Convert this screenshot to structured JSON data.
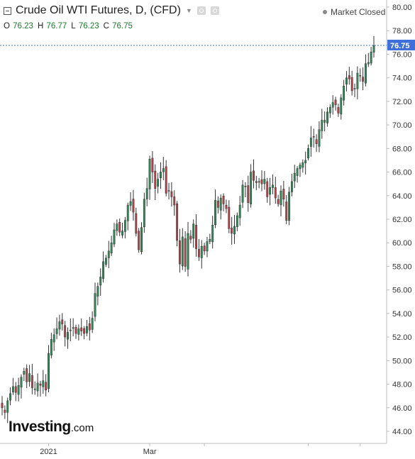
{
  "header": {
    "title": "Crude Oil WTI Futures, D, (CFD)",
    "market_status": "Market Closed",
    "ohlc": {
      "o_label": "O",
      "o": "76.23",
      "h_label": "H",
      "h": "76.77",
      "l_label": "L",
      "l": "76.23",
      "c_label": "C",
      "c": "76.75"
    }
  },
  "logo": {
    "brand": "Investing",
    "tld": ".com"
  },
  "colors": {
    "up": "#2e8b57",
    "down": "#b5424a",
    "price_tag": "#3f6fd8",
    "grid": "#e8e8e8",
    "axis": "#bdbdbd"
  },
  "chart_data": {
    "type": "candlestick",
    "y_ticks": [
      "80.00",
      "78.00",
      "76.00",
      "74.00",
      "72.00",
      "70.00",
      "68.00",
      "66.00",
      "64.00",
      "62.00",
      "60.00",
      "58.00",
      "56.00",
      "54.00",
      "52.00",
      "50.00",
      "48.00",
      "46.00",
      "44.00"
    ],
    "x_labels": [
      "2021",
      "Mar"
    ],
    "ylim": [
      43.0,
      81.0
    ],
    "last_price": "76.75",
    "grid": false,
    "closes": [
      46.0,
      45.6,
      46.6,
      47.2,
      47.8,
      47.3,
      47.9,
      48.6,
      49.1,
      48.2,
      48.9,
      47.7,
      47.6,
      48.1,
      47.9,
      48.3,
      47.5,
      50.6,
      51.8,
      52.2,
      52.7,
      53.3,
      53.1,
      52.0,
      52.4,
      52.6,
      52.8,
      52.3,
      52.7,
      52.5,
      52.3,
      52.9,
      52.6,
      53.6,
      55.7,
      56.3,
      57.1,
      58.4,
      58.7,
      59.3,
      60.0,
      61.1,
      61.6,
      60.9,
      61.0,
      61.9,
      63.2,
      63.5,
      62.6,
      60.8,
      59.4,
      61.3,
      63.7,
      64.6,
      67.1,
      66.0,
      64.6,
      65.4,
      66.0,
      66.3,
      64.2,
      64.4,
      63.9,
      63.2,
      60.2,
      58.2,
      60.5,
      58.0,
      60.8,
      60.3,
      61.6,
      59.5,
      58.8,
      59.7,
      59.3,
      60.1,
      60.3,
      61.5,
      63.6,
      63.0,
      63.8,
      63.3,
      62.9,
      61.2,
      60.8,
      61.4,
      62.3,
      63.2,
      64.9,
      64.8,
      63.4,
      66.0,
      65.3,
      65.1,
      65.2,
      65.0,
      65.4,
      63.9,
      64.7,
      64.9,
      63.8,
      63.3,
      64.4,
      63.7,
      61.9,
      64.3,
      65.2,
      65.9,
      66.3,
      66.6,
      66.8,
      67.0,
      68.0,
      68.9,
      69.0,
      68.4,
      69.6,
      70.4,
      70.4,
      71.1,
      71.5,
      71.9,
      71.7,
      71.0,
      72.3,
      73.3,
      74.0,
      73.9,
      72.9,
      73.1,
      74.4,
      74.2,
      73.7,
      75.2,
      75.3,
      76.2,
      76.75
    ],
    "series": [
      {
        "name": "Crude Oil WTI Futures",
        "values_ref": "closes"
      }
    ]
  }
}
